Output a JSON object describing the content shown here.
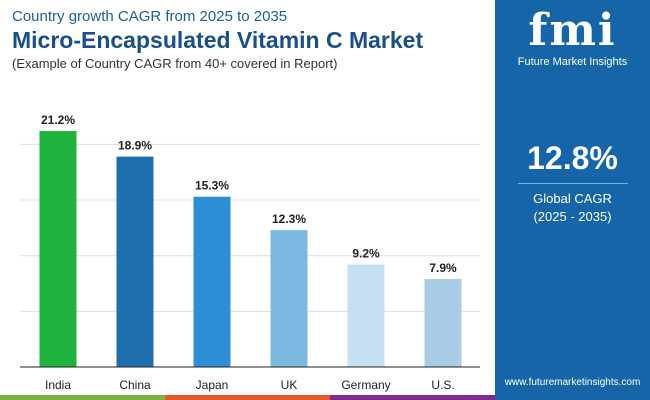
{
  "header": {
    "subtitle_top": "Country growth CAGR from 2025 to 2035",
    "title": "Micro-Encapsulated Vitamin C Market",
    "note": "(Example of Country CAGR from 40+ covered in Report)"
  },
  "panel": {
    "logo_text": "fmi",
    "brand": "Future Market Insights",
    "cagr_value": "12.8%",
    "cagr_label": "Global CAGR",
    "cagr_period": "(2025 - 2035)",
    "url": "www.futuremarketinsights.com"
  },
  "chart_data": {
    "type": "bar",
    "categories": [
      "India",
      "China",
      "Japan",
      "UK",
      "Germany",
      "U.S."
    ],
    "values": [
      21.2,
      18.9,
      15.3,
      12.3,
      9.2,
      7.9
    ],
    "labels": [
      "21.2%",
      "18.9%",
      "15.3%",
      "12.3%",
      "9.2%",
      "7.9%"
    ],
    "colors": [
      "#1db33c",
      "#1f6fae",
      "#2e8fd6",
      "#7db8e0",
      "#c4e0f2",
      "#a9cce6"
    ],
    "ylim": [
      0,
      25
    ],
    "grid": true
  },
  "footer_colors": [
    "#7cb342",
    "#e5572c",
    "#7b2d8e"
  ]
}
